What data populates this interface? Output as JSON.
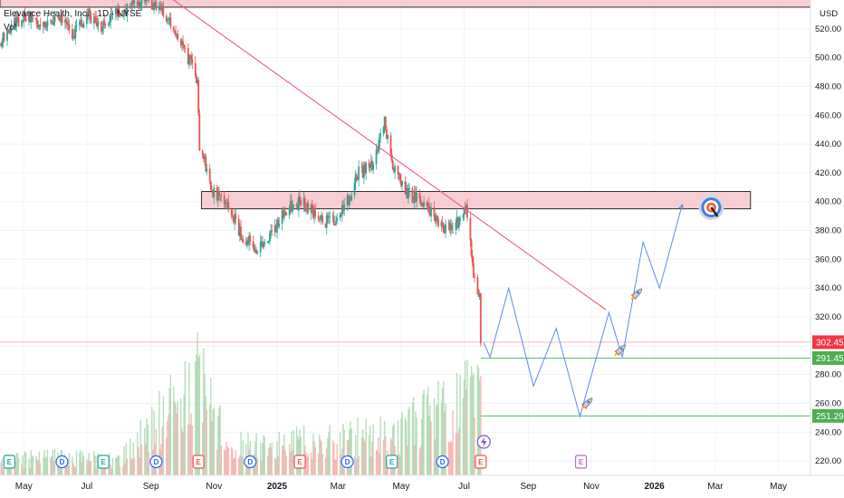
{
  "header": {
    "title": "Elevance Health, Inc. · 1D · NYSE",
    "vol_label": "Vol",
    "currency": "USD"
  },
  "chart_data": {
    "type": "candlestick",
    "ylim": [
      210,
      540
    ],
    "y_ticks": [
      "520.00",
      "500.00",
      "480.00",
      "460.00",
      "440.00",
      "420.00",
      "400.00",
      "380.00",
      "360.00",
      "340.00",
      "320.00",
      "300.00",
      "280.00",
      "260.00",
      "240.00",
      "220.00"
    ],
    "x_ticks": [
      {
        "label": "May",
        "date": "2024-05-01",
        "bold": false
      },
      {
        "label": "Jul",
        "date": "2024-07-01",
        "bold": false
      },
      {
        "label": "Sep",
        "date": "2024-09-01",
        "bold": false
      },
      {
        "label": "Nov",
        "date": "2024-11-01",
        "bold": false
      },
      {
        "label": "2025",
        "date": "2025-01-01",
        "bold": true
      },
      {
        "label": "Mar",
        "date": "2025-03-01",
        "bold": false
      },
      {
        "label": "May",
        "date": "2025-05-01",
        "bold": false
      },
      {
        "label": "Jul",
        "date": "2025-07-01",
        "bold": false
      },
      {
        "label": "Sep",
        "date": "2025-09-01",
        "bold": false
      },
      {
        "label": "Nov",
        "date": "2025-11-01",
        "bold": false
      },
      {
        "label": "2026",
        "date": "2026-01-01",
        "bold": true
      },
      {
        "label": "Mar",
        "date": "2026-03-01",
        "bold": false
      },
      {
        "label": "May",
        "date": "2026-05-01",
        "bold": false
      }
    ],
    "price_path": [
      {
        "date": "2024-04-08",
        "price": 510
      },
      {
        "date": "2024-04-22",
        "price": 525
      },
      {
        "date": "2024-05-06",
        "price": 530
      },
      {
        "date": "2024-05-20",
        "price": 520
      },
      {
        "date": "2024-06-03",
        "price": 530
      },
      {
        "date": "2024-06-17",
        "price": 515
      },
      {
        "date": "2024-07-01",
        "price": 530
      },
      {
        "date": "2024-07-15",
        "price": 520
      },
      {
        "date": "2024-07-29",
        "price": 530
      },
      {
        "date": "2024-08-12",
        "price": 535
      },
      {
        "date": "2024-08-26",
        "price": 540
      },
      {
        "date": "2024-09-09",
        "price": 535
      },
      {
        "date": "2024-09-23",
        "price": 520
      },
      {
        "date": "2024-10-07",
        "price": 500
      },
      {
        "date": "2024-10-16",
        "price": 485
      },
      {
        "date": "2024-10-18",
        "price": 440
      },
      {
        "date": "2024-11-01",
        "price": 405
      },
      {
        "date": "2024-11-15",
        "price": 395
      },
      {
        "date": "2024-11-29",
        "price": 375
      },
      {
        "date": "2024-12-13",
        "price": 368
      },
      {
        "date": "2024-12-27",
        "price": 378
      },
      {
        "date": "2025-01-10",
        "price": 395
      },
      {
        "date": "2025-01-24",
        "price": 400
      },
      {
        "date": "2025-02-07",
        "price": 390
      },
      {
        "date": "2025-02-21",
        "price": 385
      },
      {
        "date": "2025-03-07",
        "price": 395
      },
      {
        "date": "2025-03-21",
        "price": 420
      },
      {
        "date": "2025-04-04",
        "price": 425
      },
      {
        "date": "2025-04-15",
        "price": 455
      },
      {
        "date": "2025-04-25",
        "price": 420
      },
      {
        "date": "2025-05-09",
        "price": 405
      },
      {
        "date": "2025-05-23",
        "price": 400
      },
      {
        "date": "2025-06-06",
        "price": 385
      },
      {
        "date": "2025-06-20",
        "price": 380
      },
      {
        "date": "2025-07-03",
        "price": 395
      },
      {
        "date": "2025-07-07",
        "price": 370
      },
      {
        "date": "2025-07-11",
        "price": 345
      },
      {
        "date": "2025-07-16",
        "price": 337
      },
      {
        "date": "2025-07-17",
        "price": 302.45
      }
    ],
    "volume_path": [
      {
        "date": "2024-04-08",
        "v": 20
      },
      {
        "date": "2024-06-01",
        "v": 25
      },
      {
        "date": "2024-08-01",
        "v": 20
      },
      {
        "date": "2024-10-17",
        "v": 130
      },
      {
        "date": "2024-11-15",
        "v": 40
      },
      {
        "date": "2025-01-23",
        "v": 45
      },
      {
        "date": "2025-04-22",
        "v": 55
      },
      {
        "date": "2025-07-17",
        "v": 115
      }
    ],
    "support_zone": {
      "low": 395,
      "high": 407
    },
    "top_zone": {
      "low": 535,
      "high": 545
    },
    "trendline": [
      {
        "date": "2024-09-13",
        "price": 545
      },
      {
        "date": "2025-11-15",
        "price": 325
      }
    ],
    "projection": [
      {
        "date": "2025-07-20",
        "price": 302
      },
      {
        "date": "2025-07-26",
        "price": 292
      },
      {
        "date": "2025-08-13",
        "price": 340
      },
      {
        "date": "2025-09-06",
        "price": 272
      },
      {
        "date": "2025-09-28",
        "price": 312
      },
      {
        "date": "2025-10-21",
        "price": 251
      },
      {
        "date": "2025-11-18",
        "price": 323
      },
      {
        "date": "2025-12-01",
        "price": 292
      },
      {
        "date": "2025-12-21",
        "price": 372
      },
      {
        "date": "2026-01-06",
        "price": 340
      },
      {
        "date": "2026-01-28",
        "price": 398
      }
    ],
    "horizontal_lines": [
      {
        "price": 302.45,
        "color": "#f7525f",
        "label": "302.45",
        "from": "2024-04-08"
      },
      {
        "price": 291.45,
        "color": "#4caf50",
        "label": "291.45",
        "from": "2025-07-17"
      },
      {
        "price": 251.29,
        "color": "#4caf50",
        "label": "251.29",
        "from": "2025-07-17"
      }
    ],
    "events": [
      {
        "type": "E",
        "date": "2024-04-17"
      },
      {
        "type": "D",
        "date": "2024-06-07"
      },
      {
        "type": "E",
        "date": "2024-07-17"
      },
      {
        "type": "D",
        "date": "2024-09-06"
      },
      {
        "type": "E",
        "date": "2024-10-17"
      },
      {
        "type": "D",
        "date": "2024-12-06"
      },
      {
        "type": "E",
        "date": "2025-01-23"
      },
      {
        "type": "D",
        "date": "2025-03-10"
      },
      {
        "type": "E",
        "date": "2025-04-22"
      },
      {
        "type": "D",
        "date": "2025-06-10"
      },
      {
        "type": "E",
        "date": "2025-07-17"
      },
      {
        "type": "E",
        "date": "2025-10-22",
        "future": true
      }
    ],
    "markers": [
      {
        "kind": "rocket",
        "date": "2025-12-15",
        "price": 336
      },
      {
        "kind": "rocket",
        "date": "2025-11-29",
        "price": 297
      },
      {
        "kind": "rocket",
        "date": "2025-10-28",
        "price": 260
      },
      {
        "kind": "target",
        "date": "2026-02-25",
        "price": 396
      }
    ]
  },
  "colors": {
    "up": "#26a69a",
    "down": "#ef5350",
    "zone_fill": "#f8cdd3",
    "trendline": "#f0506e",
    "projection": "#5b8def",
    "grid": "#f0f3fa",
    "red_tag": "#f23645",
    "green_tag": "#4caf50"
  }
}
